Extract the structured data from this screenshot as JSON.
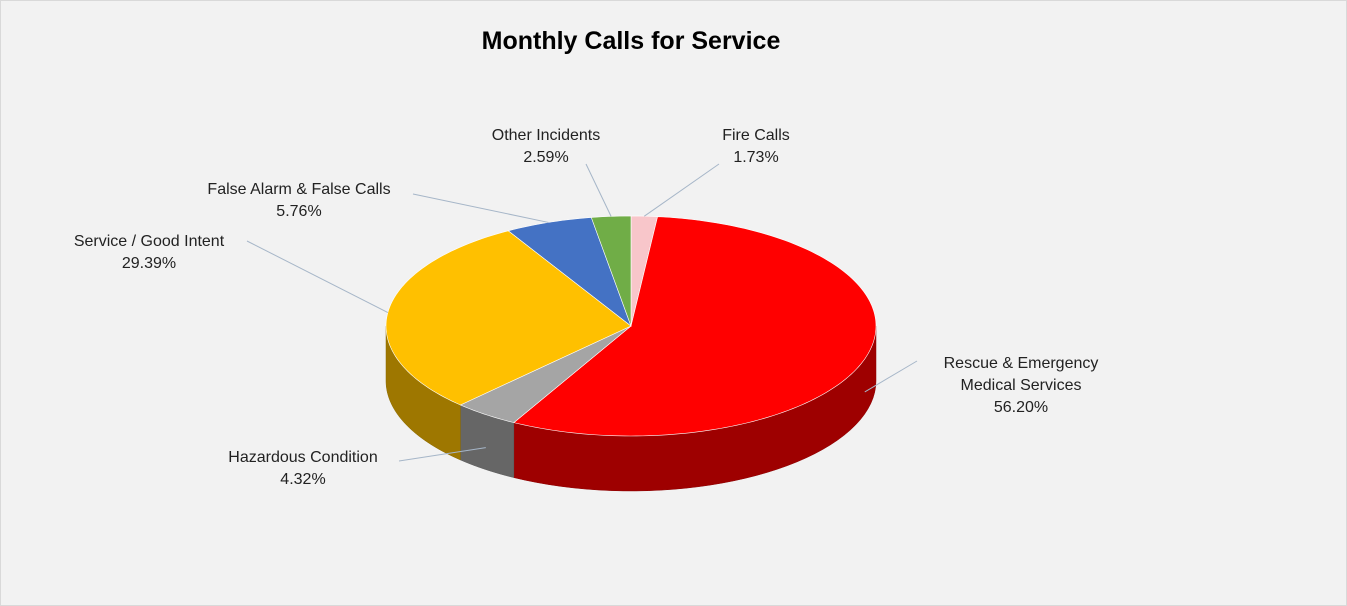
{
  "chart_data": {
    "type": "pie3d",
    "title": "Monthly Calls for Service",
    "categories": [
      "Fire Calls",
      "Rescue & Emergency Medical Services",
      "Hazardous Condition",
      "Service / Good Intent",
      "False Alarm & False Calls",
      "Other Incidents"
    ],
    "values": [
      1.73,
      56.2,
      4.32,
      29.39,
      5.76,
      2.59
    ],
    "value_labels": [
      "1.73%",
      "56.20%",
      "4.32%",
      "29.39%",
      "5.76%",
      "2.59%"
    ],
    "colors": [
      "#f8c6ca",
      "#ff0000",
      "#a5a5a5",
      "#ffc000",
      "#4472c4",
      "#70ad47"
    ]
  }
}
